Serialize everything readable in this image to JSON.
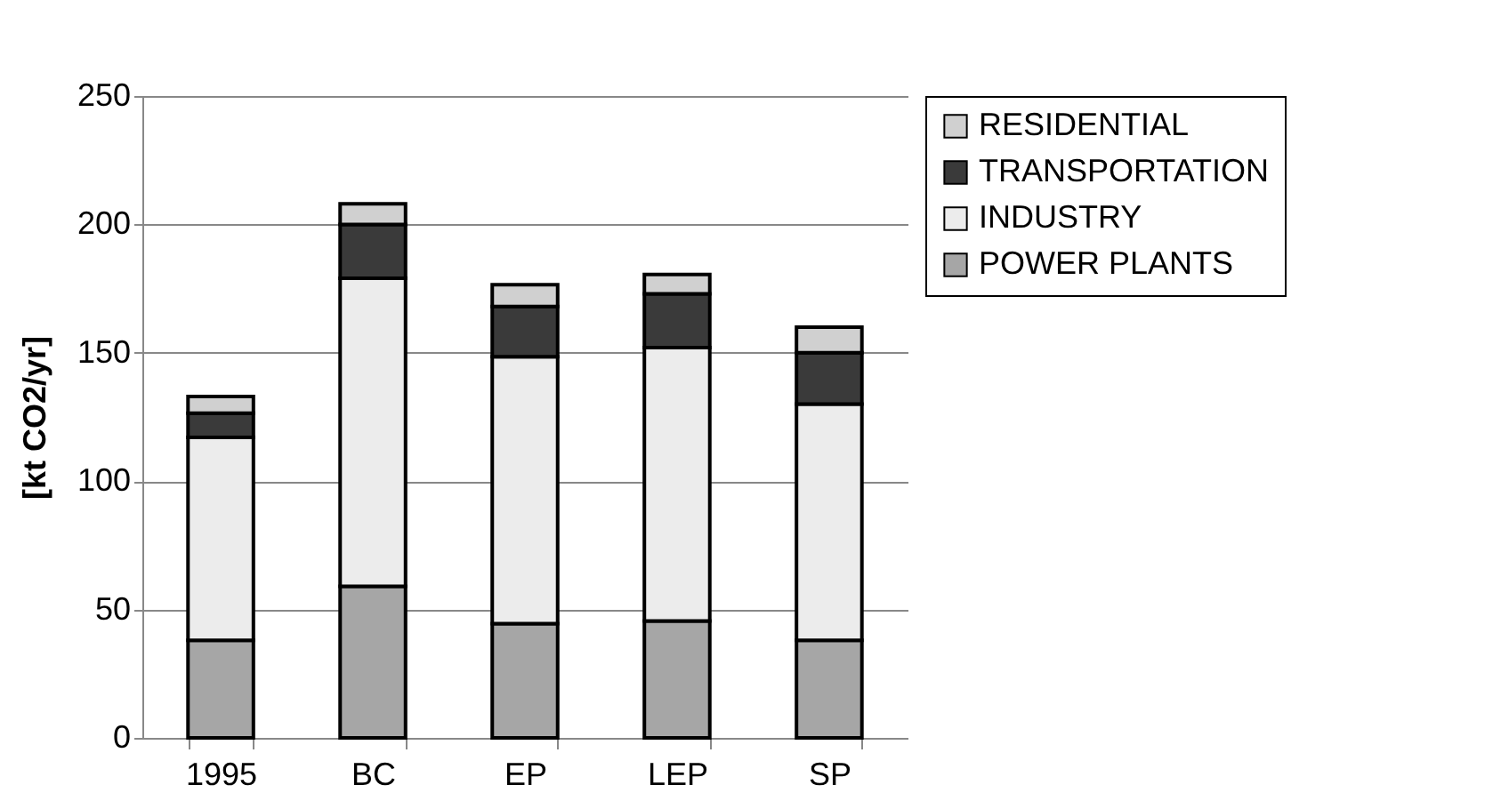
{
  "chart_data": {
    "type": "bar",
    "stacked": true,
    "ylabel": "[kt CO2/yr]",
    "categories": [
      "1995",
      "BC",
      "EP",
      "LEP",
      "SP"
    ],
    "series": [
      {
        "name": "POWER PLANTS",
        "color": "#a6a6a6",
        "values": [
          38,
          59,
          44.5,
          45.5,
          38
        ]
      },
      {
        "name": "INDUSTRY",
        "color": "#ececec",
        "values": [
          79,
          120,
          104,
          106.5,
          92
        ]
      },
      {
        "name": "TRANSPORTATION",
        "color": "#3a3a3a",
        "values": [
          9.5,
          21,
          19.5,
          21,
          20
        ]
      },
      {
        "name": "RESIDENTIAL",
        "color": "#d0d0d0",
        "values": [
          6.5,
          8,
          8.5,
          7.5,
          10
        ]
      }
    ],
    "ylim": [
      0,
      250
    ],
    "yticks": [
      0,
      50,
      100,
      150,
      200,
      250
    ],
    "grid": "y",
    "legend": "right"
  }
}
